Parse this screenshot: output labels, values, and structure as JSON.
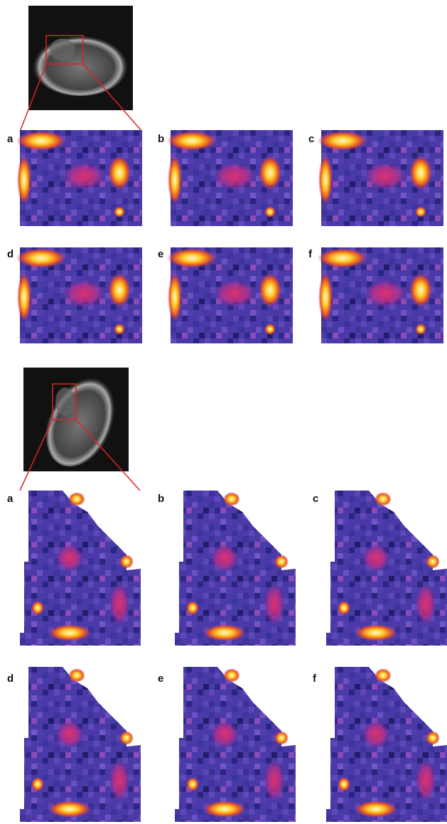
{
  "figure": {
    "top_panels": [
      "a",
      "b",
      "c",
      "d",
      "e",
      "f"
    ],
    "bottom_panels": [
      "a",
      "b",
      "c",
      "d",
      "e",
      "f"
    ]
  }
}
